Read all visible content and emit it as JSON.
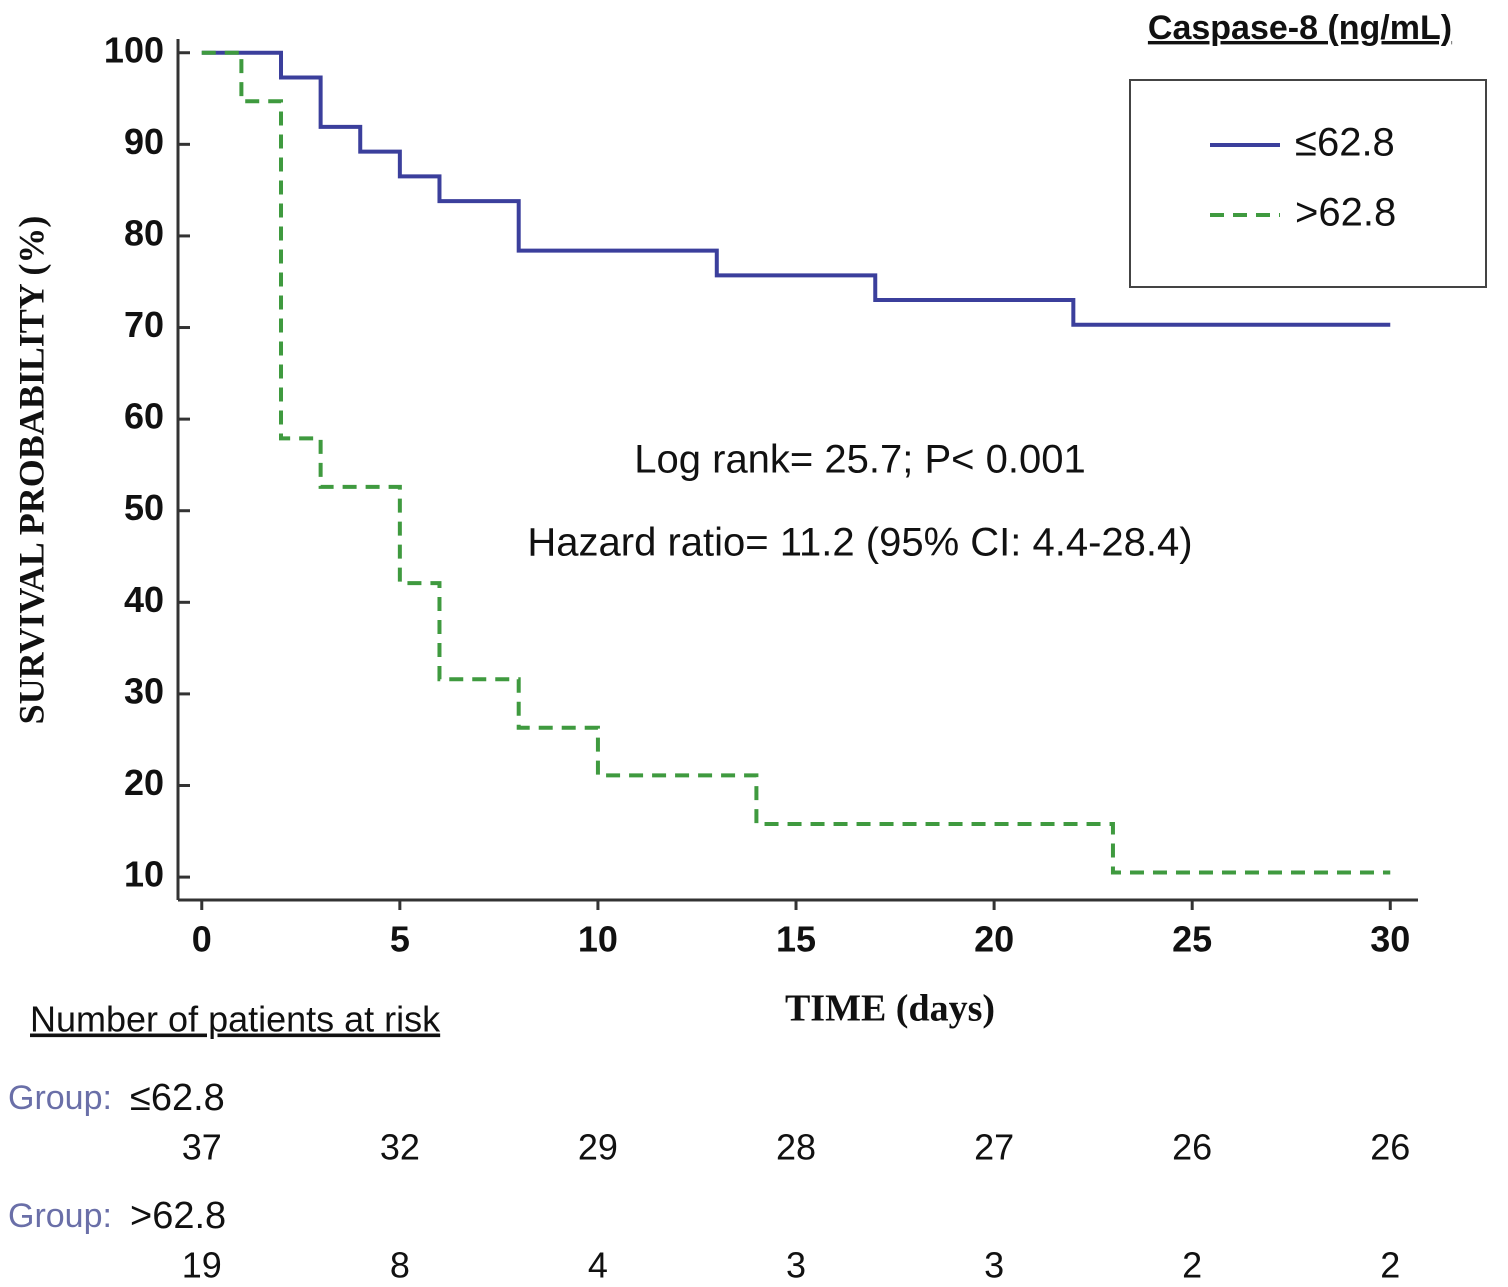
{
  "chart_data": {
    "type": "line",
    "legend_title": "Caspase-8 (ng/mL)",
    "ylabel": "SURVIVAL PROBABILITY (%)",
    "xlabel": "TIME (days)",
    "xlim": [
      -0.6,
      30.7
    ],
    "ylim": [
      7.5,
      101.5
    ],
    "xticks": [
      0,
      5,
      10,
      15,
      20,
      25,
      30
    ],
    "yticks": [
      10,
      20,
      30,
      40,
      50,
      60,
      70,
      80,
      90,
      100
    ],
    "legend": "upper right",
    "series": [
      {
        "name": "≤62.8",
        "color": "#3b3f9c",
        "dashed": false,
        "x": [
          0,
          2,
          2,
          3,
          3,
          4,
          4,
          5,
          5,
          6,
          6,
          8,
          8,
          13,
          13,
          17,
          17,
          22,
          22,
          30
        ],
        "values": [
          100,
          100,
          97.3,
          97.3,
          91.9,
          91.9,
          89.2,
          89.2,
          86.5,
          86.5,
          83.8,
          83.8,
          78.4,
          78.4,
          75.7,
          75.7,
          73,
          73,
          70.3,
          70.3
        ]
      },
      {
        "name": ">62.8",
        "color": "#3f9a3f",
        "dashed": true,
        "x": [
          0,
          1,
          1,
          2,
          2,
          3,
          3,
          5,
          5,
          6,
          6,
          8,
          8,
          10,
          10,
          14,
          14,
          23,
          23,
          30
        ],
        "values": [
          100,
          100,
          94.7,
          94.7,
          57.9,
          57.9,
          52.6,
          52.6,
          42.1,
          42.1,
          31.6,
          31.6,
          26.3,
          26.3,
          21.1,
          21.1,
          15.8,
          15.8,
          10.5,
          10.5
        ]
      }
    ],
    "annotations": [
      "Log rank= 25.7; P< 0.001",
      "Hazard ratio= 11.2  (95% CI: 4.4-28.4)"
    ],
    "risk_table": {
      "title": "Number of patients at risk",
      "rows": [
        {
          "prefix": "Group:",
          "name": "≤62.8",
          "counts": [
            37,
            32,
            29,
            28,
            27,
            26,
            26
          ]
        },
        {
          "prefix": "Group:",
          "name": ">62.8",
          "counts": [
            19,
            8,
            4,
            3,
            3,
            2,
            2
          ]
        }
      ]
    }
  }
}
